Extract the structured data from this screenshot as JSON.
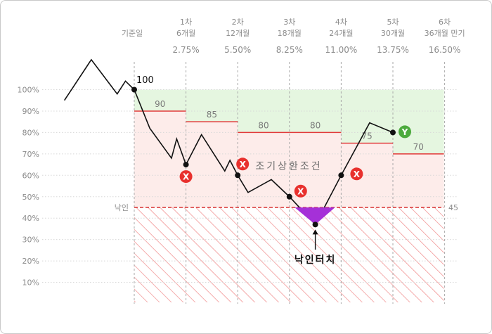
{
  "chart_data": {
    "type": "line",
    "title": "",
    "xlabel": "",
    "ylabel": "",
    "ylim": [
      0,
      110
    ],
    "y_ticks": [
      "10%",
      "20%",
      "30%",
      "40%",
      "50%",
      "60%",
      "70%",
      "80%",
      "90%",
      "100%"
    ],
    "columns": [
      {
        "line1": "",
        "line2": "기준일",
        "coupon": ""
      },
      {
        "line1": "1차",
        "line2": "6개월",
        "coupon": "2.75%"
      },
      {
        "line1": "2차",
        "line2": "12개월",
        "coupon": "5.50%"
      },
      {
        "line1": "3차",
        "line2": "18개월",
        "coupon": "8.25%"
      },
      {
        "line1": "4차",
        "line2": "24개월",
        "coupon": "11.00%"
      },
      {
        "line1": "5차",
        "line2": "30개월",
        "coupon": "13.75%"
      },
      {
        "line1": "6차",
        "line2": "36개월 만기",
        "coupon": "16.50%"
      }
    ],
    "start_value_label": "100",
    "redemption_barriers": [
      {
        "period": 1,
        "value": 90,
        "label": "90"
      },
      {
        "period": 2,
        "value": 85,
        "label": "85"
      },
      {
        "period": 3,
        "value": 80,
        "label": "80"
      },
      {
        "period": 4,
        "value": 80,
        "label": "80"
      },
      {
        "period": 5,
        "value": 75,
        "label": "75"
      },
      {
        "period": 6,
        "value": 70,
        "label": "70"
      }
    ],
    "knock_in": {
      "value": 45,
      "label_left": "낙인",
      "label_right": "45"
    },
    "price_path": [
      {
        "x": -0.35,
        "y": 95
      },
      {
        "x": -0.2,
        "y": 114
      },
      {
        "x": -0.05,
        "y": 98
      },
      {
        "x": -0.05,
        "y": 98
      },
      {
        "x": -0.17,
        "y": 104
      },
      {
        "x": 0,
        "y": 100
      },
      {
        "x": 0.3,
        "y": 82
      },
      {
        "x": 0.72,
        "y": 68
      },
      {
        "x": 0.82,
        "y": 77
      },
      {
        "x": 1,
        "y": 65
      },
      {
        "x": 1.15,
        "y": 72
      },
      {
        "x": 1.3,
        "y": 79
      },
      {
        "x": 1.75,
        "y": 62
      },
      {
        "x": 1.85,
        "y": 67
      },
      {
        "x": 2,
        "y": 60
      },
      {
        "x": 2.2,
        "y": 52
      },
      {
        "x": 2.65,
        "y": 58
      },
      {
        "x": 3,
        "y": 50
      },
      {
        "x": 3.5,
        "y": 37
      },
      {
        "x": 4,
        "y": 60
      },
      {
        "x": 4.55,
        "y": 84.5
      },
      {
        "x": 5,
        "y": 80
      }
    ],
    "observations": [
      {
        "period": 1,
        "value": 65,
        "result": "X"
      },
      {
        "period": 2,
        "value": 60,
        "result": "X"
      },
      {
        "period": 3,
        "value": 50,
        "result": "X"
      },
      {
        "period": 4,
        "value": 60,
        "result": "X"
      },
      {
        "period": 5,
        "value": 80,
        "result": "Y"
      }
    ],
    "knock_in_touch": {
      "x": 3.5,
      "value": 37,
      "label": "낙인터치"
    },
    "zone_label": "조기상환조건",
    "colors": {
      "line": "#111111",
      "barrier": "#e23a3a",
      "redemption_zone": "#e5f6e0",
      "loss_zone": "#fdecea",
      "hatch": "#f08a8a",
      "fail_marker": "#e8302d",
      "success_marker": "#4caa3d",
      "knock_in_fill": "#a530d8"
    }
  }
}
